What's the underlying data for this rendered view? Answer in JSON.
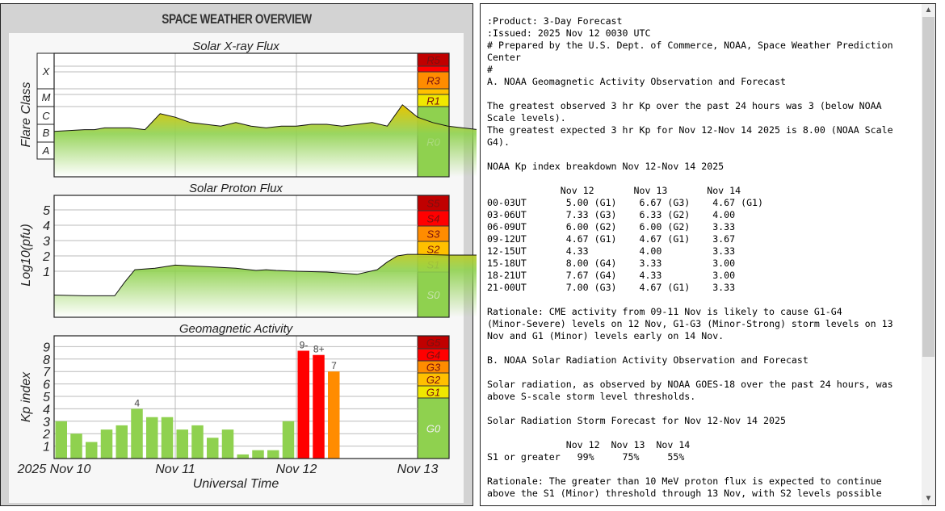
{
  "panel_title": "SPACE WEATHER OVERVIEW",
  "chart_data": [
    {
      "type": "line",
      "title": "Solar X-ray Flux",
      "ylabel": "Flare Class",
      "class_labels": [
        "X",
        "M",
        "C",
        "B",
        "A"
      ],
      "x_hours": [
        0,
        6,
        8,
        10,
        12,
        15,
        18,
        21,
        24,
        27,
        30,
        33,
        36,
        39,
        42,
        45,
        48,
        51,
        54,
        57,
        60,
        63,
        66,
        69,
        72,
        75,
        78,
        84,
        90,
        96,
        102,
        108,
        110
      ],
      "log_flux": [
        -6.4,
        -6.3,
        -6.3,
        -6.2,
        -6.2,
        -6.2,
        -6.3,
        -5.4,
        -5.6,
        -5.9,
        -6.0,
        -6.1,
        -5.9,
        -6.1,
        -6.2,
        -6.1,
        -6.1,
        -6.0,
        -6.0,
        -6.1,
        -6.0,
        -5.9,
        -6.1,
        -4.9,
        -5.6,
        -5.9,
        -6.1,
        -6.3,
        -6.3,
        -6.4,
        -6.3,
        -6.3,
        -6.25
      ],
      "scale": [
        {
          "label": "R5",
          "color": "#c00000"
        },
        {
          "label": "",
          "color": "#ff0000"
        },
        {
          "label": "R3",
          "color": "#ff8c00"
        },
        {
          "label": "",
          "color": "#ffc000"
        },
        {
          "label": "R1",
          "color": "#f0e800"
        },
        {
          "label": "R0",
          "color": "#8fd14f"
        }
      ]
    },
    {
      "type": "line",
      "title": "Solar Proton Flux",
      "ylabel": "Log10(pfu)",
      "yticks": [
        "1",
        "2",
        "3",
        "4",
        "5"
      ],
      "x_hours": [
        0,
        6,
        12,
        14,
        16,
        20,
        24,
        30,
        36,
        40,
        42,
        44,
        48,
        54,
        60,
        64,
        66,
        68,
        70,
        72,
        78,
        84,
        90,
        96,
        100,
        103,
        104,
        106,
        108,
        112,
        118,
        120,
        128,
        130
      ],
      "log_pfu": [
        -0.55,
        -0.6,
        -0.6,
        0.3,
        1.1,
        1.2,
        1.4,
        1.3,
        1.2,
        1.05,
        1.1,
        1.05,
        1.0,
        0.95,
        0.8,
        1.1,
        1.6,
        2.0,
        2.1,
        2.1,
        2.05,
        2.05,
        2.0,
        1.95,
        2.0,
        2.6,
        2.9,
        2.9,
        3.1,
        3.0,
        2.9,
        2.85,
        2.75,
        2.7
      ],
      "scale": [
        {
          "label": "S5",
          "color": "#c00000"
        },
        {
          "label": "S4",
          "color": "#ff0000"
        },
        {
          "label": "S3",
          "color": "#ff8c00"
        },
        {
          "label": "S2",
          "color": "#ffc000"
        },
        {
          "label": "S1",
          "color": "#f0e800"
        },
        {
          "label": "S0",
          "color": "#8fd14f"
        }
      ]
    },
    {
      "type": "bar",
      "title": "Geomagnetic Activity",
      "ylabel": "Kp index",
      "xlabel": "Universal Time",
      "ylim": [
        0,
        9.9
      ],
      "yticks": [
        "1",
        "2",
        "3",
        "4",
        "5",
        "6",
        "7",
        "8",
        "9"
      ],
      "x_ticks": [
        "2025 Nov 10",
        "Nov 11",
        "Nov 12",
        "Nov 13"
      ],
      "kp": [
        3,
        2,
        1.33,
        2.33,
        2.67,
        4,
        3.33,
        3.33,
        2.33,
        2.67,
        1.67,
        2.33,
        0.33,
        0.67,
        0.67,
        3,
        8.67,
        8.33,
        7
      ],
      "bar_labels": {
        "5": "4",
        "16": "9-",
        "17": "8+",
        "18": "7"
      },
      "scale": [
        {
          "label": "G5",
          "color": "#c00000"
        },
        {
          "label": "G4",
          "color": "#ff0000"
        },
        {
          "label": "G3",
          "color": "#ff8c00"
        },
        {
          "label": "G2",
          "color": "#ffc000"
        },
        {
          "label": "G1",
          "color": "#f0e800"
        },
        {
          "label": "G0",
          "color": "#8fd14f"
        }
      ]
    }
  ],
  "forecast_text": ":Product: 3-Day Forecast\n:Issued: 2025 Nov 12 0030 UTC\n# Prepared by the U.S. Dept. of Commerce, NOAA, Space Weather Prediction\nCenter\n#\nA. NOAA Geomagnetic Activity Observation and Forecast\n\nThe greatest observed 3 hr Kp over the past 24 hours was 3 (below NOAA\nScale levels).\nThe greatest expected 3 hr Kp for Nov 12-Nov 14 2025 is 8.00 (NOAA Scale\nG4).\n\nNOAA Kp index breakdown Nov 12-Nov 14 2025\n\n             Nov 12       Nov 13       Nov 14\n00-03UT       5.00 (G1)    6.67 (G3)    4.67 (G1)\n03-06UT       7.33 (G3)    6.33 (G2)    4.00\n06-09UT       6.00 (G2)    6.00 (G2)    3.33\n09-12UT       4.67 (G1)    4.67 (G1)    3.67\n12-15UT       4.33         4.00         3.33\n15-18UT       8.00 (G4)    3.33         3.00\n18-21UT       7.67 (G4)    4.33         3.00\n21-00UT       7.00 (G3)    4.67 (G1)    3.33\n\nRationale: CME activity from 09-11 Nov is likely to cause G1-G4\n(Minor-Severe) levels on 12 Nov, G1-G3 (Minor-Strong) storm levels on 13\nNov and G1 (Minor) levels early on 14 Nov.\n\nB. NOAA Solar Radiation Activity Observation and Forecast\n\nSolar radiation, as observed by NOAA GOES-18 over the past 24 hours, was\nabove S-scale storm level thresholds.\n\nSolar Radiation Storm Forecast for Nov 12-Nov 14 2025\n\n              Nov 12  Nov 13  Nov 14\nS1 or greater   99%     75%     55%\n\nRationale: The greater than 10 MeV proton flux is expected to continue\nabove the S1 (Minor) threshold through 13 Nov, with S2 levels possible"
}
